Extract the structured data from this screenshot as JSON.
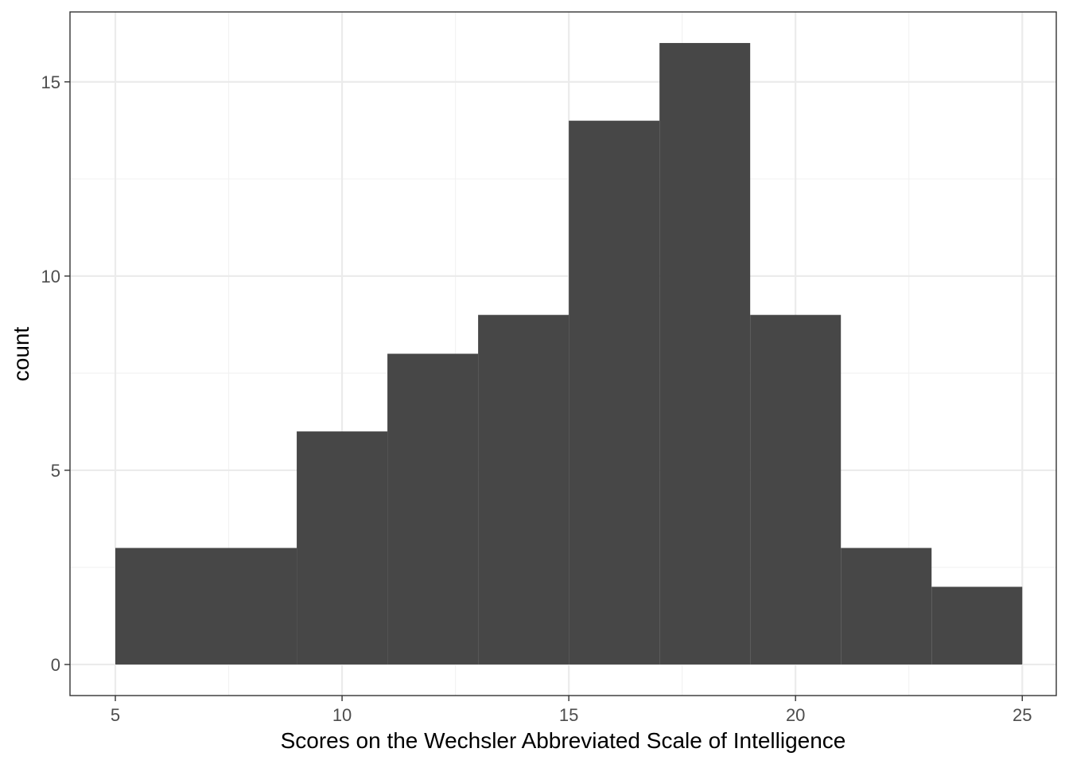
{
  "chart_data": {
    "type": "bar",
    "subtype": "histogram",
    "title": "",
    "xlabel": "Scores on the Wechsler Abbreviated Scale of Intelligence",
    "ylabel": "count",
    "bins": [
      {
        "x0": 5,
        "x1": 9,
        "count": 3
      },
      {
        "x0": 9,
        "x1": 11,
        "count": 6
      },
      {
        "x0": 11,
        "x1": 13,
        "count": 8
      },
      {
        "x0": 13,
        "x1": 15,
        "count": 9
      },
      {
        "x0": 15,
        "x1": 17,
        "count": 14
      },
      {
        "x0": 17,
        "x1": 19,
        "count": 16
      },
      {
        "x0": 19,
        "x1": 21,
        "count": 9
      },
      {
        "x0": 21,
        "x1": 23,
        "count": 3
      },
      {
        "x0": 23,
        "x1": 25,
        "count": 2
      }
    ],
    "xlim": [
      4,
      25.75
    ],
    "ylim": [
      -0.8,
      16.8
    ],
    "x_ticks": [
      5,
      10,
      15,
      20,
      25
    ],
    "x_tick_labels": [
      "5",
      "10",
      "15",
      "20",
      "25"
    ],
    "x_minor_ticks": [
      7.5,
      12.5,
      17.5,
      22.5
    ],
    "y_ticks": [
      0,
      5,
      10,
      15
    ],
    "y_tick_labels": [
      "0",
      "5",
      "10",
      "15"
    ],
    "y_minor_ticks": [
      2.5,
      7.5,
      12.5
    ],
    "grid": true,
    "legend": "none",
    "colors": {
      "bar_fill": "#474747",
      "panel_background": "#ffffff",
      "panel_border": "#333333",
      "grid_major": "#ebebeb",
      "grid_minor": "#f2f2f2",
      "tick_mark": "#333333"
    }
  }
}
